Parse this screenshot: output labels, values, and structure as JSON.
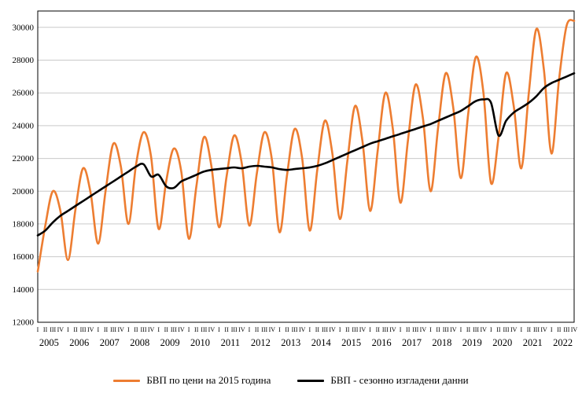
{
  "chart_data": {
    "type": "line",
    "title": "",
    "years": [
      "2005",
      "2006",
      "2007",
      "2008",
      "2009",
      "2010",
      "2011",
      "2012",
      "2013",
      "2014",
      "2015",
      "2016",
      "2017",
      "2018",
      "2019",
      "2020",
      "2021",
      "2022"
    ],
    "quarters": [
      "I",
      "II",
      "III",
      "IV"
    ],
    "y_ticks": [
      12000,
      14000,
      16000,
      18000,
      20000,
      22000,
      24000,
      26000,
      28000,
      30000
    ],
    "ylim": [
      12000,
      31000
    ],
    "grid_color": "#c9c9c9",
    "border_color": "#000000",
    "series": [
      {
        "name": "БВП  по цени на 2015 година",
        "color": "#ED7D31",
        "width": 2.6,
        "values": [
          15100,
          17900,
          20000,
          18800,
          15800,
          18900,
          21400,
          19900,
          16800,
          20100,
          22900,
          21500,
          18000,
          21600,
          23600,
          22100,
          17700,
          20600,
          22600,
          21200,
          17100,
          20300,
          23300,
          21500,
          17800,
          20900,
          23400,
          21700,
          17900,
          21100,
          23600,
          21900,
          17500,
          21000,
          23800,
          22000,
          17600,
          21300,
          24300,
          22300,
          18300,
          21900,
          25200,
          23000,
          18800,
          22500,
          26000,
          23800,
          19300,
          23100,
          26500,
          24400,
          20000,
          23900,
          27200,
          25100,
          20800,
          24800,
          28200,
          26000,
          20500,
          23300,
          27200,
          25200,
          21400,
          26000,
          29900,
          27400,
          22300,
          26800,
          30100,
          30400
        ]
      },
      {
        "name": "БВП - сезонно изгладени данни",
        "color": "#000000",
        "width": 2.6,
        "values": [
          17300,
          17600,
          18100,
          18500,
          18800,
          19100,
          19400,
          19700,
          20000,
          20300,
          20600,
          20900,
          21200,
          21500,
          21650,
          20900,
          21000,
          20300,
          20200,
          20600,
          20800,
          21000,
          21200,
          21300,
          21350,
          21400,
          21450,
          21400,
          21500,
          21550,
          21500,
          21450,
          21350,
          21300,
          21350,
          21400,
          21450,
          21550,
          21700,
          21900,
          22100,
          22300,
          22500,
          22700,
          22900,
          23050,
          23200,
          23350,
          23500,
          23650,
          23800,
          23950,
          24100,
          24300,
          24500,
          24700,
          24900,
          25200,
          25500,
          25600,
          25400,
          23400,
          24300,
          24800,
          25100,
          25400,
          25800,
          26300,
          26600,
          26800,
          27000,
          27200
        ]
      }
    ],
    "legend_position": "bottom",
    "grid": "horizontal"
  }
}
